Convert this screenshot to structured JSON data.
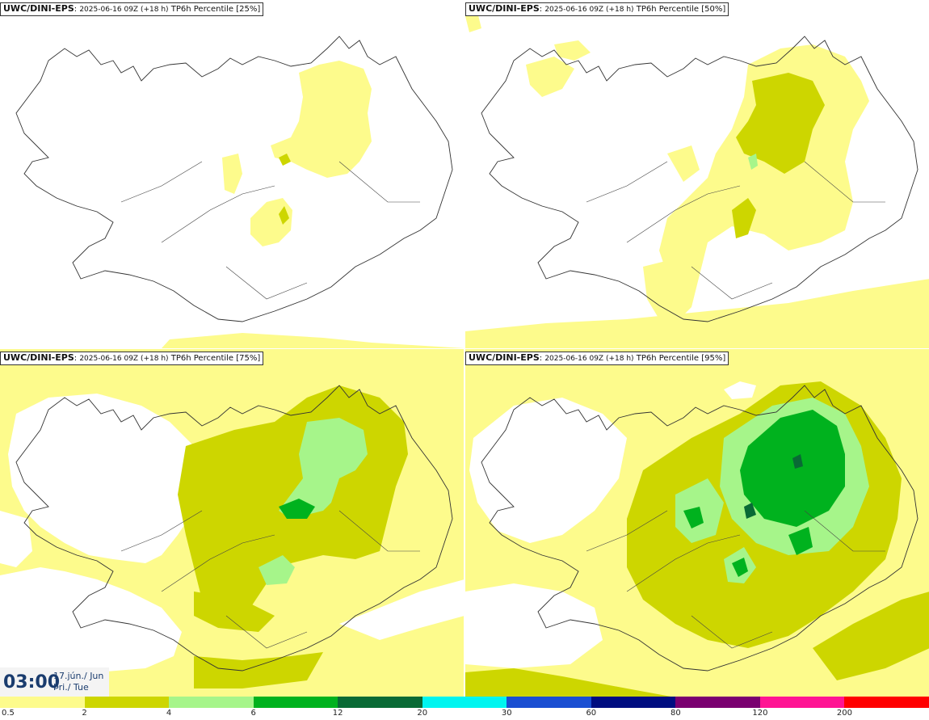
{
  "panels": [
    {
      "model": "UWC/DINI-EPS",
      "run": "2025-06-16 09Z (+18 h)",
      "product": "TP6h Percentile [25%]"
    },
    {
      "model": "UWC/DINI-EPS",
      "run": "2025-06-16 09Z (+18 h)",
      "product": "TP6h Percentile [50%]"
    },
    {
      "model": "UWC/DINI-EPS",
      "run": "2025-06-16 09Z (+18 h)",
      "product": "TP6h Percentile [75%]"
    },
    {
      "model": "UWC/DINI-EPS",
      "run": "2025-06-16 09Z (+18 h)",
      "product": "TP6h Percentile [95%]"
    }
  ],
  "valid_time": {
    "time": "03:00",
    "date_line1": "17.jún./ Jun",
    "date_line2": "Þri./ Tue"
  },
  "legend": {
    "colors": [
      "#fdfb8c",
      "#cdd600",
      "#a6f58a",
      "#00b21e",
      "#096a35",
      "#00f5f0",
      "#1a4fd2",
      "#000d80",
      "#7a0070",
      "#ff1493",
      "#ff0000"
    ],
    "ticks": [
      "0.5",
      "2",
      "4",
      "6",
      "12",
      "20",
      "30",
      "60",
      "80",
      "120",
      "200"
    ]
  }
}
